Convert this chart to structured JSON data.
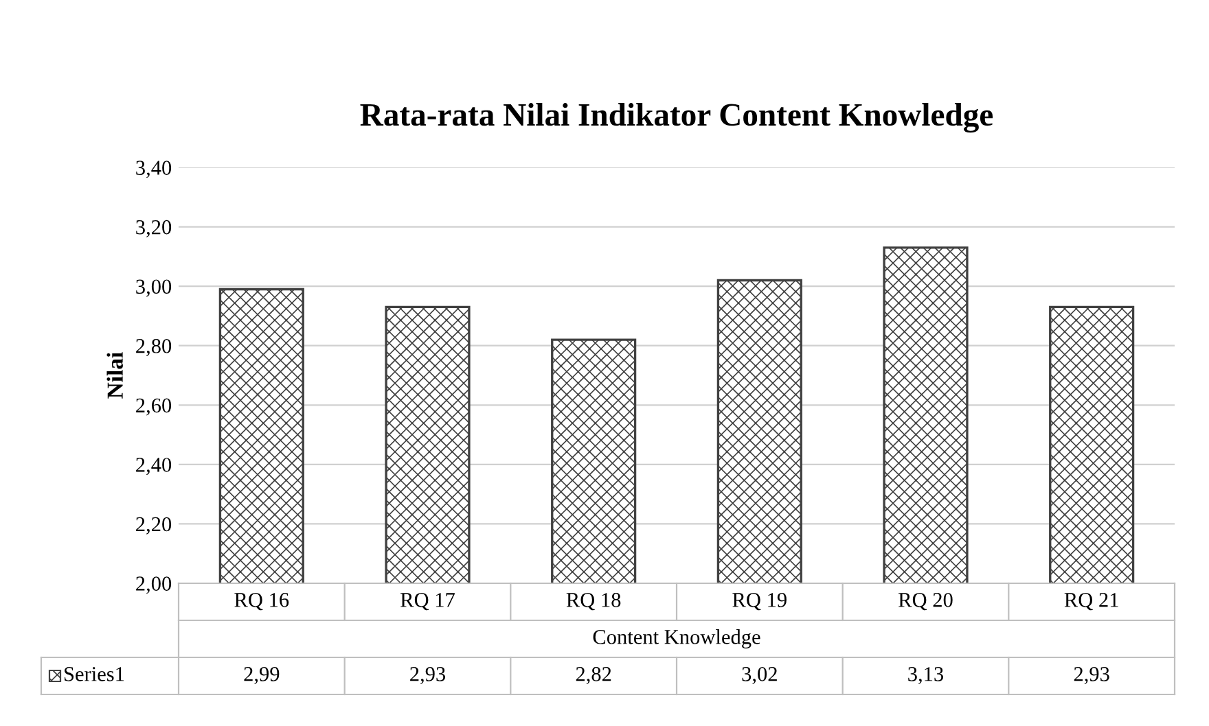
{
  "chart_data": {
    "type": "bar",
    "title": "Rata-rata Nilai Indikator Content Knowledge",
    "xlabel": "Content Knowledge",
    "ylabel": "Nilai",
    "categories": [
      "RQ 16",
      "RQ 17",
      "RQ 18",
      "RQ 19",
      "RQ 20",
      "RQ 21"
    ],
    "series": [
      {
        "name": "Series1",
        "color": "#404040",
        "values": [
          2.99,
          2.93,
          2.82,
          3.02,
          3.13,
          2.93
        ],
        "value_labels": [
          "2,99",
          "2,93",
          "2,82",
          "3,02",
          "3,13",
          "2,93"
        ]
      }
    ],
    "ylim": [
      2.0,
      3.4
    ],
    "yticks": [
      {
        "value": 2.0,
        "label": "2,00"
      },
      {
        "value": 2.2,
        "label": "2,20"
      },
      {
        "value": 2.4,
        "label": "2,40"
      },
      {
        "value": 2.6,
        "label": "2,60"
      },
      {
        "value": 2.8,
        "label": "2,80"
      },
      {
        "value": 3.0,
        "label": "3,00"
      },
      {
        "value": 3.2,
        "label": "3,20"
      },
      {
        "value": 3.4,
        "label": "3,40"
      }
    ],
    "grid": "y",
    "legend": "bottom left"
  }
}
